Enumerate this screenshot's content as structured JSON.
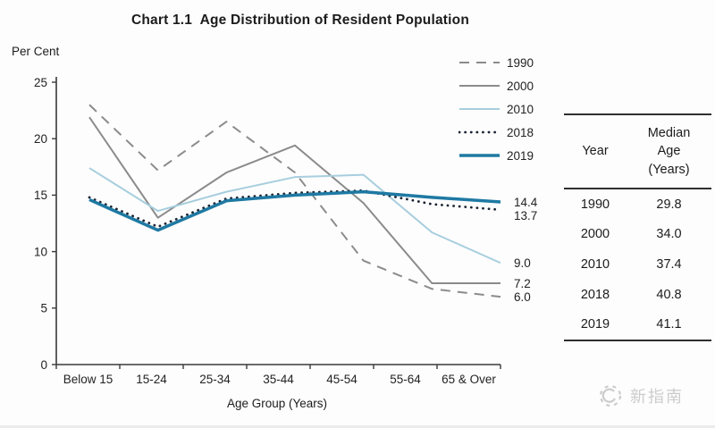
{
  "page": {
    "title": "Chart 1.1  Age Distribution of Resident Population"
  },
  "chart": {
    "y_axis_title": "Per Cent",
    "x_axis_title": "Age Group (Years)"
  },
  "chart_data": {
    "type": "line",
    "title": "Chart 1.1 Age Distribution of Resident Population",
    "xlabel": "Age Group (Years)",
    "ylabel": "Per Cent",
    "ylim": [
      0,
      25
    ],
    "yticks": [
      0,
      5,
      10,
      15,
      20,
      25
    ],
    "grid": false,
    "legend_position": "top-right",
    "categories": [
      "Below 15",
      "15-24",
      "25-34",
      "35-44",
      "45-54",
      "55-64",
      "65 & Over"
    ],
    "series": [
      {
        "name": "1990",
        "color": "#8b8b8b",
        "style": "dashed",
        "width": 2,
        "values": [
          23.0,
          17.2,
          21.5,
          17.0,
          9.2,
          6.7,
          6.0
        ]
      },
      {
        "name": "2000",
        "color": "#8b8b8b",
        "style": "solid",
        "width": 2,
        "values": [
          21.9,
          13.0,
          17.0,
          19.4,
          14.3,
          7.2,
          7.2
        ]
      },
      {
        "name": "2010",
        "color": "#a7cede",
        "style": "solid",
        "width": 2,
        "values": [
          17.4,
          13.6,
          15.3,
          16.6,
          16.8,
          11.7,
          9.0
        ]
      },
      {
        "name": "2018",
        "color": "#1c2433",
        "style": "dotted",
        "width": 2.8,
        "values": [
          14.8,
          12.2,
          14.7,
          15.2,
          15.4,
          14.2,
          13.7
        ]
      },
      {
        "name": "2019",
        "color": "#1e79a3",
        "style": "solid",
        "width": 3.5,
        "values": [
          14.6,
          11.9,
          14.5,
          15.0,
          15.3,
          14.8,
          14.4
        ]
      }
    ],
    "end_labels": [
      {
        "series": "2019",
        "label": "14.4"
      },
      {
        "series": "2018",
        "label": "13.7"
      },
      {
        "series": "2010",
        "label": "9.0"
      },
      {
        "series": "2000",
        "label": "7.2"
      },
      {
        "series": "1990",
        "label": "6.0"
      }
    ]
  },
  "median_table": {
    "col1_header": "Year",
    "col2_header": "Median\nAge\n(Years)",
    "rows": [
      {
        "year": "1990",
        "median_age": "29.8"
      },
      {
        "year": "2000",
        "median_age": "34.0"
      },
      {
        "year": "2010",
        "median_age": "37.4"
      },
      {
        "year": "2018",
        "median_age": "40.8"
      },
      {
        "year": "2019",
        "median_age": "41.1"
      }
    ]
  },
  "watermark": {
    "text": "新指南"
  }
}
